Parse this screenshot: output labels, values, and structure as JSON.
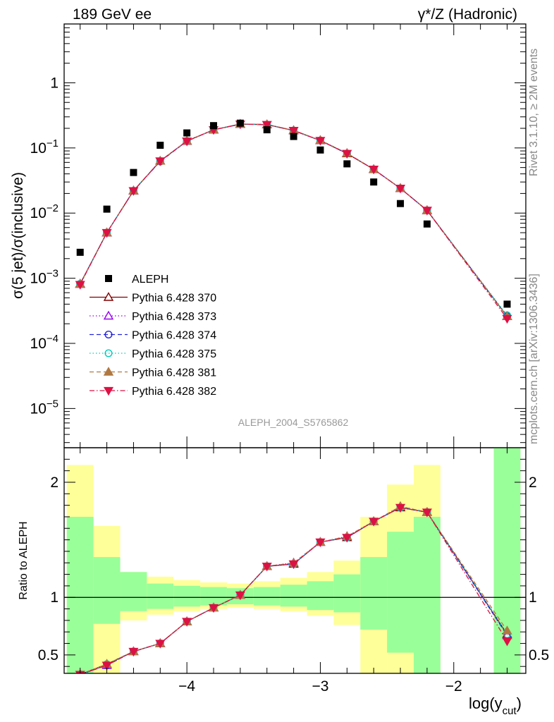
{
  "header": {
    "left": "189 GeV ee",
    "right": "γ*/Z (Hadronic)"
  },
  "side": {
    "rivet": "Rivet 3.1.10, ≥ 2M events",
    "mcplots": "mcplots.cern.ch [arXiv:1306.3436]"
  },
  "chart_data": [
    {
      "type": "scatter",
      "title": "",
      "analysis_label": "ALEPH_2004_S5765862",
      "ylabel": "σ(5 jet)/σ(inclusive)",
      "xlabel": "log(y_cut)",
      "yscale": "log",
      "xlim": [
        -4.92,
        -1.46
      ],
      "ylim": [
        2.5e-06,
        8
      ],
      "x_ticks": [
        -4,
        -3,
        -2
      ],
      "y_tick_labels": [
        "1",
        "10^-1",
        "10^-2",
        "10^-3",
        "10^-4",
        "10^-5"
      ],
      "legend_position": "lower-left",
      "data": {
        "name": "ALEPH",
        "color": "#000000",
        "x": [
          -4.8,
          -4.6,
          -4.4,
          -4.2,
          -4.0,
          -3.8,
          -3.6,
          -3.4,
          -3.2,
          -3.0,
          -2.8,
          -2.6,
          -2.4,
          -2.2,
          -1.6
        ],
        "y": [
          0.0025,
          0.0115,
          0.042,
          0.11,
          0.17,
          0.22,
          0.24,
          0.19,
          0.15,
          0.093,
          0.057,
          0.03,
          0.014,
          0.0068,
          0.0004
        ]
      },
      "mc_x": [
        -4.8,
        -4.6,
        -4.4,
        -4.2,
        -4.0,
        -3.8,
        -3.6,
        -3.4,
        -3.2,
        -3.0,
        -2.8,
        -2.6,
        -2.4,
        -2.2,
        -1.6
      ],
      "series": [
        {
          "name": "Pythia 6.428 370",
          "color": "#800000",
          "marker": "triangle-open",
          "dash": "solid",
          "y": [
            0.00082,
            0.005,
            0.022,
            0.063,
            0.128,
            0.19,
            0.232,
            0.228,
            0.185,
            0.13,
            0.082,
            0.047,
            0.024,
            0.011,
            0.00026
          ]
        },
        {
          "name": "Pythia 6.428 373",
          "color": "#9900ee",
          "marker": "triangle-open",
          "dash": "dotted",
          "y": [
            0.00081,
            0.005,
            0.022,
            0.063,
            0.127,
            0.19,
            0.233,
            0.229,
            0.186,
            0.131,
            0.083,
            0.047,
            0.024,
            0.011,
            0.00026
          ]
        },
        {
          "name": "Pythia 6.428 374",
          "color": "#2222dd",
          "marker": "circle-open",
          "dash": "dashed",
          "y": [
            0.00082,
            0.005,
            0.022,
            0.062,
            0.127,
            0.19,
            0.232,
            0.228,
            0.185,
            0.13,
            0.082,
            0.047,
            0.024,
            0.011,
            0.00026
          ]
        },
        {
          "name": "Pythia 6.428 375",
          "color": "#00ccbb",
          "marker": "circle-open",
          "dash": "dotted",
          "y": [
            0.00082,
            0.005,
            0.022,
            0.063,
            0.128,
            0.19,
            0.232,
            0.228,
            0.185,
            0.13,
            0.082,
            0.047,
            0.024,
            0.011,
            0.00027
          ]
        },
        {
          "name": "Pythia 6.428 381",
          "color": "#b07840",
          "marker": "triangle-filled",
          "dash": "dashed",
          "y": [
            0.00081,
            0.005,
            0.022,
            0.063,
            0.128,
            0.19,
            0.233,
            0.229,
            0.186,
            0.131,
            0.083,
            0.047,
            0.024,
            0.011,
            0.00026
          ]
        },
        {
          "name": "Pythia 6.428 382",
          "color": "#dd1144",
          "marker": "triangle-down-filled",
          "dash": "dashdot",
          "y": [
            0.0008,
            0.005,
            0.022,
            0.063,
            0.127,
            0.19,
            0.232,
            0.228,
            0.185,
            0.13,
            0.082,
            0.047,
            0.024,
            0.011,
            0.00024
          ]
        }
      ]
    },
    {
      "type": "scatter",
      "title": "",
      "ylabel": "Ratio to ALEPH",
      "xlabel": "log(y_cut)",
      "xlim": [
        -4.92,
        -1.46
      ],
      "ylim": [
        0.34,
        2.3
      ],
      "y_ticks": [
        0.5,
        1,
        2
      ],
      "y_tick_labels": [
        "0.5",
        "1",
        "2"
      ],
      "reference_line": 1,
      "bands": [
        {
          "x0": -4.9,
          "x1": -4.7,
          "yellow": [
            0.3,
            2.15
          ],
          "green": [
            0.3,
            1.7
          ]
        },
        {
          "x0": -4.7,
          "x1": -4.5,
          "yellow": [
            0.3,
            1.62
          ],
          "green": [
            0.77,
            1.35
          ]
        },
        {
          "x0": -4.5,
          "x1": -4.3,
          "yellow": [
            0.8,
            1.22
          ],
          "green": [
            0.88,
            1.22
          ]
        },
        {
          "x0": -4.3,
          "x1": -4.1,
          "yellow": [
            0.85,
            1.18
          ],
          "green": [
            0.9,
            1.12
          ]
        },
        {
          "x0": -4.1,
          "x1": -3.9,
          "yellow": [
            0.88,
            1.15
          ],
          "green": [
            0.92,
            1.1
          ]
        },
        {
          "x0": -3.9,
          "x1": -3.7,
          "yellow": [
            0.9,
            1.13
          ],
          "green": [
            0.93,
            1.09
          ]
        },
        {
          "x0": -3.7,
          "x1": -3.5,
          "yellow": [
            0.91,
            1.12
          ],
          "green": [
            0.94,
            1.08
          ]
        },
        {
          "x0": -3.5,
          "x1": -3.3,
          "yellow": [
            0.9,
            1.14
          ],
          "green": [
            0.93,
            1.09
          ]
        },
        {
          "x0": -3.3,
          "x1": -3.1,
          "yellow": [
            0.88,
            1.17
          ],
          "green": [
            0.92,
            1.11
          ]
        },
        {
          "x0": -3.1,
          "x1": -2.9,
          "yellow": [
            0.84,
            1.22
          ],
          "green": [
            0.89,
            1.14
          ]
        },
        {
          "x0": -2.9,
          "x1": -2.7,
          "yellow": [
            0.76,
            1.32
          ],
          "green": [
            0.87,
            1.2
          ]
        },
        {
          "x0": -2.7,
          "x1": -2.5,
          "yellow": [
            0.3,
            1.7
          ],
          "green": [
            0.72,
            1.35
          ]
        },
        {
          "x0": -2.5,
          "x1": -2.3,
          "yellow": [
            0.3,
            1.98
          ],
          "green": [
            0.52,
            1.57
          ]
        },
        {
          "x0": -2.3,
          "x1": -2.1,
          "yellow": [
            0.3,
            2.15
          ],
          "green": [
            0.3,
            1.7
          ]
        },
        {
          "x0": -1.7,
          "x1": -1.5,
          "yellow": [
            0.3,
            2.4
          ],
          "green": [
            0.3,
            2.4
          ]
        }
      ],
      "series": [
        {
          "name": "Pythia 6.428 370",
          "color": "#800000",
          "marker": "triangle-open",
          "dash": "solid",
          "x": [
            -4.8,
            -4.6,
            -4.4,
            -4.2,
            -4.0,
            -3.8,
            -3.6,
            -3.4,
            -3.2,
            -3.0,
            -2.8,
            -2.6,
            -2.4,
            -2.2,
            -1.6
          ],
          "y": [
            0.33,
            0.42,
            0.53,
            0.6,
            0.79,
            0.91,
            1.02,
            1.27,
            1.29,
            1.48,
            1.52,
            1.66,
            1.78,
            1.74,
            0.68
          ]
        },
        {
          "name": "Pythia 6.428 373",
          "color": "#9900ee",
          "marker": "triangle-open",
          "dash": "dotted",
          "x": [
            -4.8,
            -4.6,
            -4.4,
            -4.2,
            -4.0,
            -3.8,
            -3.6,
            -3.4,
            -3.2,
            -3.0,
            -2.8,
            -2.6,
            -2.4,
            -2.2,
            -1.6
          ],
          "y": [
            0.33,
            0.41,
            0.53,
            0.6,
            0.79,
            0.91,
            1.02,
            1.27,
            1.3,
            1.48,
            1.53,
            1.66,
            1.79,
            1.74,
            0.67
          ]
        },
        {
          "name": "Pythia 6.428 374",
          "color": "#2222dd",
          "marker": "circle-open",
          "dash": "dashed",
          "x": [
            -4.8,
            -4.6,
            -4.4,
            -4.2,
            -4.0,
            -3.8,
            -3.6,
            -3.4,
            -3.2,
            -3.0,
            -2.8,
            -2.6,
            -2.4,
            -2.2,
            -1.6
          ],
          "y": [
            0.33,
            0.41,
            0.53,
            0.6,
            0.79,
            0.91,
            1.02,
            1.27,
            1.29,
            1.48,
            1.52,
            1.66,
            1.78,
            1.74,
            0.67
          ]
        },
        {
          "name": "Pythia 6.428 375",
          "color": "#00ccbb",
          "marker": "circle-open",
          "dash": "dotted",
          "x": [
            -4.8,
            -4.6,
            -4.4,
            -4.2,
            -4.0,
            -3.8,
            -3.6,
            -3.4,
            -3.2,
            -3.0,
            -2.8,
            -2.6,
            -2.4,
            -2.2,
            -1.6
          ],
          "y": [
            0.33,
            0.42,
            0.53,
            0.6,
            0.79,
            0.91,
            1.02,
            1.27,
            1.29,
            1.48,
            1.52,
            1.66,
            1.78,
            1.74,
            0.68
          ]
        },
        {
          "name": "Pythia 6.428 381",
          "color": "#b07840",
          "marker": "triangle-filled",
          "dash": "dashed",
          "x": [
            -4.8,
            -4.6,
            -4.4,
            -4.2,
            -4.0,
            -3.8,
            -3.6,
            -3.4,
            -3.2,
            -3.0,
            -2.8,
            -2.6,
            -2.4,
            -2.2,
            -1.6
          ],
          "y": [
            0.33,
            0.42,
            0.53,
            0.6,
            0.79,
            0.91,
            1.02,
            1.27,
            1.3,
            1.48,
            1.53,
            1.66,
            1.79,
            1.74,
            0.71
          ]
        },
        {
          "name": "Pythia 6.428 382",
          "color": "#dd1144",
          "marker": "triangle-down-filled",
          "dash": "dashdot",
          "x": [
            -4.8,
            -4.6,
            -4.4,
            -4.2,
            -4.0,
            -3.8,
            -3.6,
            -3.4,
            -3.2,
            -3.0,
            -2.8,
            -2.6,
            -2.4,
            -2.2,
            -1.6
          ],
          "y": [
            0.33,
            0.41,
            0.53,
            0.6,
            0.79,
            0.91,
            1.02,
            1.27,
            1.29,
            1.48,
            1.52,
            1.66,
            1.78,
            1.74,
            0.62
          ]
        }
      ]
    }
  ]
}
